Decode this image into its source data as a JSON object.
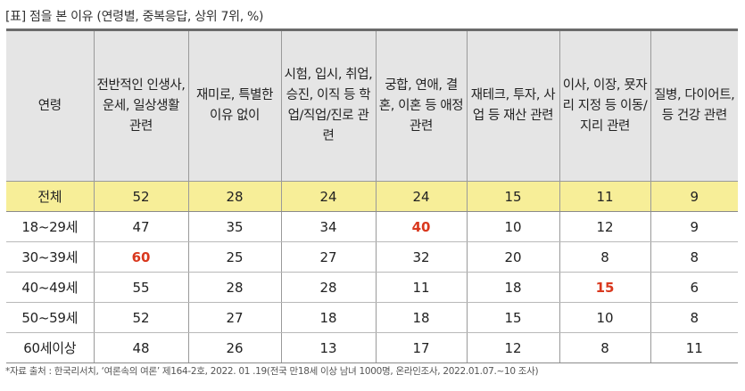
{
  "title": "[표] 점을 본 이유 (연령별, 중복응답, 상위 7위, %)",
  "headers": [
    "연령",
    "전반적인 인생사, 운세, 일상생활 관련",
    "재미로, 특별한 이유 없이",
    "시험, 입시, 취업, 승진, 이직 등 학업/직업/진로 관련",
    "궁합, 연애, 결혼, 이혼 등 애정 관련",
    "재테크, 투자, 사업 등 재산 관련",
    "이사, 이장, 묫자리 지정 등 이동/지리 관련",
    "질병, 다이어트, 등 건강 관련"
  ],
  "rows": [
    {
      "label": "전체",
      "values": [
        "52",
        "28",
        "24",
        "24",
        "15",
        "11",
        "9"
      ]
    },
    {
      "label": "18~29세",
      "values": [
        "47",
        "35",
        "34",
        "40",
        "10",
        "12",
        "9"
      ]
    },
    {
      "label": "30~39세",
      "values": [
        "60",
        "25",
        "27",
        "32",
        "20",
        "8",
        "8"
      ]
    },
    {
      "label": "40~49세",
      "values": [
        "55",
        "28",
        "28",
        "11",
        "18",
        "15",
        "6"
      ]
    },
    {
      "label": "50~59세",
      "values": [
        "52",
        "27",
        "18",
        "18",
        "15",
        "10",
        "8"
      ]
    },
    {
      "label": "60세이상",
      "values": [
        "48",
        "26",
        "13",
        "17",
        "12",
        "8",
        "11"
      ]
    }
  ],
  "highlight_color": "#d9381e",
  "total_row_color": "#f7ee98",
  "footnote": "*자료 출처 : 한국리서치, ‘여론속의 여론’ 제164-2호, 2022. 01 .19(전국 만18세 이상 남녀 1000명, 온라인조사, 2022.01.07.~10 조사)"
}
